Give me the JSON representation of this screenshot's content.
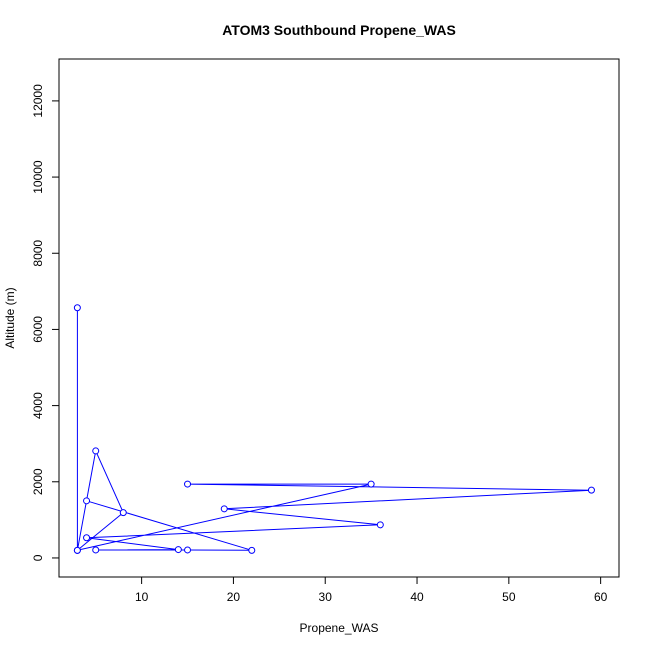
{
  "chart_data": {
    "type": "line",
    "title": "ATOM3 Southbound Propene_WAS",
    "xlabel": "Propene_WAS",
    "ylabel": "Altitude (m)",
    "xlim": [
      1,
      62
    ],
    "ylim": [
      -500,
      13100
    ],
    "x_ticks": [
      10,
      20,
      30,
      40,
      50,
      60
    ],
    "y_ticks": [
      0,
      2000,
      4000,
      6000,
      8000,
      10000,
      12000
    ],
    "grid": false,
    "legend": "none",
    "colors": {
      "series": "#0000ff",
      "axes": "#000000"
    },
    "series": [
      {
        "marker": "open-circle",
        "points": [
          {
            "x": 3,
            "y": 6570
          },
          {
            "x": 3,
            "y": 200
          },
          {
            "x": 5,
            "y": 2810
          },
          {
            "x": 8,
            "y": 1190
          },
          {
            "x": 3,
            "y": 200
          },
          {
            "x": 35,
            "y": 1940
          },
          {
            "x": 15,
            "y": 1940
          },
          {
            "x": 59,
            "y": 1780
          },
          {
            "x": 19,
            "y": 1290
          },
          {
            "x": 36,
            "y": 870
          },
          {
            "x": 4,
            "y": 530
          },
          {
            "x": 14,
            "y": 220
          },
          {
            "x": 5,
            "y": 210
          },
          {
            "x": 15,
            "y": 210
          },
          {
            "x": 22,
            "y": 200
          },
          {
            "x": 4,
            "y": 1500
          }
        ]
      }
    ]
  }
}
